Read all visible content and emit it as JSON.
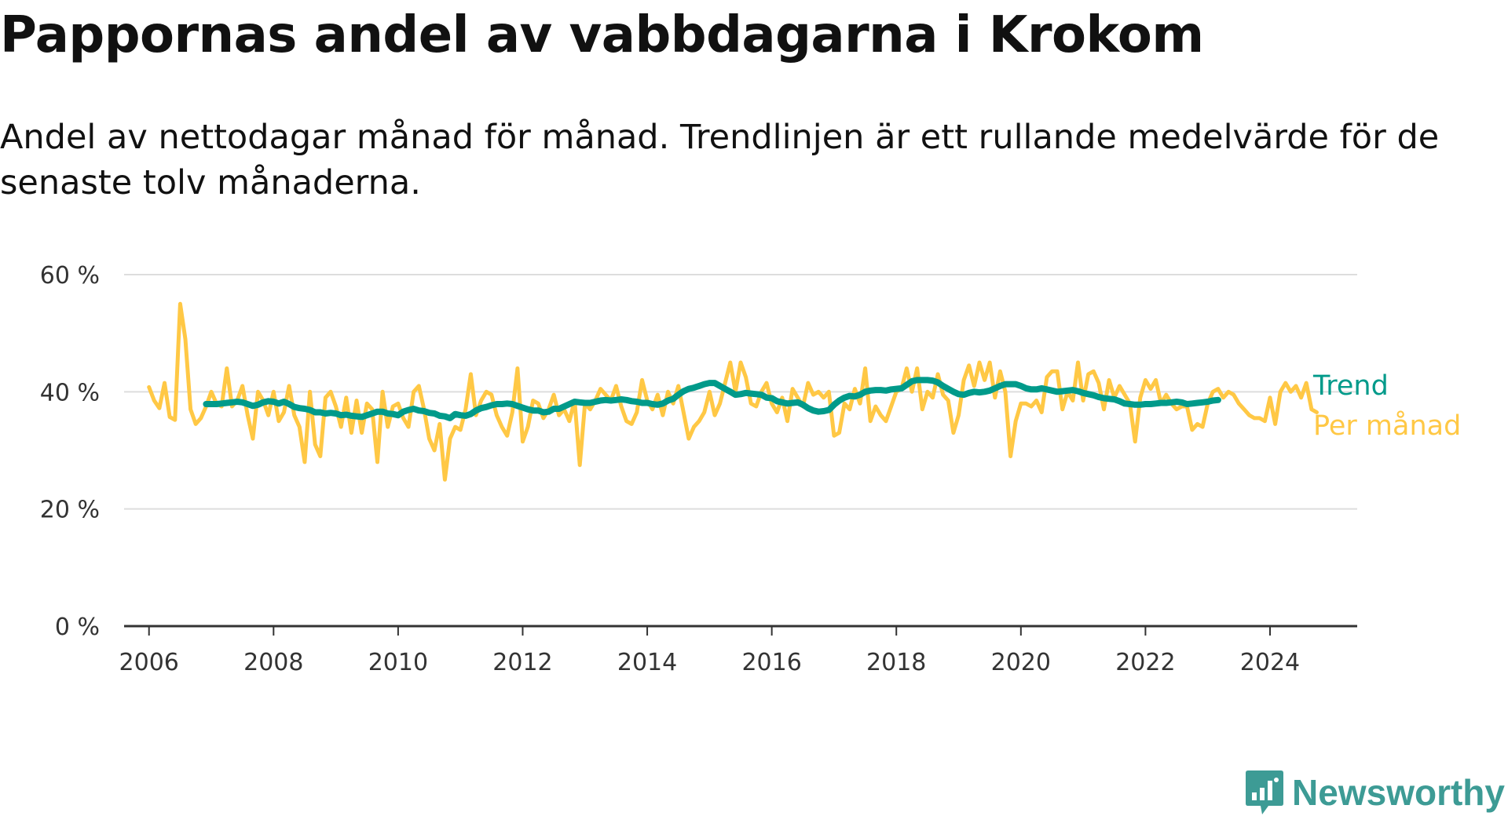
{
  "title": "Pappornas andel av vabbdagarna i Krokom",
  "subtitle": "Andel av nettodagar månad för månad. Trendlinjen är ett rullande medelvärde för de senaste tolv månaderna.",
  "brand": {
    "name": "Newsworthy",
    "color": "#3d9b95"
  },
  "chart_data": {
    "type": "line",
    "x_range": [
      2005.6,
      2025.4
    ],
    "ylim": [
      0,
      60
    ],
    "y_ticks": [
      {
        "value": 0,
        "label": "0 %"
      },
      {
        "value": 20,
        "label": "20 %"
      },
      {
        "value": 40,
        "label": "40 %"
      },
      {
        "value": 60,
        "label": "60 %"
      }
    ],
    "x_ticks": [
      {
        "value": 2006,
        "label": "2006"
      },
      {
        "value": 2008,
        "label": "2008"
      },
      {
        "value": 2010,
        "label": "2010"
      },
      {
        "value": 2012,
        "label": "2012"
      },
      {
        "value": 2014,
        "label": "2014"
      },
      {
        "value": 2016,
        "label": "2016"
      },
      {
        "value": 2018,
        "label": "2018"
      },
      {
        "value": 2020,
        "label": "2020"
      },
      {
        "value": 2022,
        "label": "2022"
      },
      {
        "value": 2024,
        "label": "2024"
      }
    ],
    "grid": true,
    "series": [
      {
        "name": "Per månad",
        "color": "#ffc845",
        "x_start": 2006.0,
        "x_step": 0.0833333,
        "values": [
          40.8,
          38.5,
          37.2,
          41.5,
          35.7,
          35.2,
          55.0,
          49.0,
          37.0,
          34.5,
          35.5,
          37.5,
          40.0,
          38.0,
          37.5,
          44.0,
          37.5,
          38.5,
          41.0,
          36.0,
          32.0,
          40.0,
          38.5,
          36.0,
          40.0,
          35.0,
          36.5,
          41.0,
          36.0,
          34.0,
          28.0,
          40.0,
          31.0,
          29.0,
          39.0,
          40.0,
          37.5,
          34.0,
          39.0,
          33.0,
          38.5,
          33.0,
          38.0,
          37.0,
          28.0,
          40.0,
          34.0,
          37.5,
          38.0,
          35.5,
          34.0,
          40.0,
          41.0,
          37.0,
          32.0,
          30.0,
          34.5,
          25.0,
          32.0,
          34.0,
          33.5,
          37.0,
          43.0,
          36.0,
          38.5,
          40.0,
          39.5,
          36.0,
          34.0,
          32.5,
          36.5,
          44.0,
          31.5,
          34.0,
          38.5,
          38.0,
          35.5,
          37.0,
          39.5,
          36.0,
          37.0,
          35.0,
          38.5,
          27.5,
          38.0,
          37.0,
          38.5,
          40.5,
          39.5,
          38.5,
          41.0,
          37.5,
          35.0,
          34.5,
          36.5,
          42.0,
          38.5,
          37.0,
          39.5,
          36.0,
          40.0,
          38.0,
          41.0,
          36.5,
          32.0,
          34.0,
          35.0,
          36.5,
          40.0,
          36.0,
          38.0,
          41.5,
          45.0,
          40.0,
          45.0,
          42.5,
          38.0,
          37.5,
          40.0,
          41.5,
          38.0,
          36.5,
          39.0,
          35.0,
          40.5,
          39.0,
          37.5,
          41.5,
          39.5,
          40.0,
          39.0,
          40.0,
          32.5,
          33.0,
          38.0,
          37.0,
          40.5,
          38.0,
          44.0,
          35.0,
          37.5,
          36.0,
          35.0,
          37.5,
          40.0,
          40.5,
          44.0,
          40.0,
          44.0,
          37.0,
          40.0,
          39.0,
          43.0,
          39.5,
          38.5,
          33.0,
          36.0,
          42.0,
          44.5,
          41.0,
          45.0,
          42.0,
          45.0,
          39.0,
          43.5,
          40.0,
          29.0,
          35.0,
          38.0,
          38.0,
          37.5,
          38.5,
          36.5,
          42.5,
          43.5,
          43.5,
          37.0,
          40.0,
          38.5,
          45.0,
          38.5,
          43.0,
          43.5,
          41.5,
          37.0,
          42.0,
          39.0,
          41.0,
          39.5,
          38.0,
          31.5,
          39.0,
          42.0,
          40.5,
          42.0,
          38.0,
          39.5,
          38.0,
          37.0,
          37.5,
          37.5,
          33.5,
          34.5,
          34.0,
          38.0,
          40.0,
          40.5,
          39.0,
          40.0,
          39.5,
          38.0,
          37.0,
          36.0,
          35.5,
          35.5,
          35.0,
          39.0,
          34.5,
          40.0,
          41.5,
          40.0,
          41.0,
          39.0,
          41.5,
          37.0,
          36.5
        ]
      },
      {
        "name": "Trend",
        "color": "#009a8a",
        "x_start": 2006.917,
        "x_step": 0.0833333,
        "values": [
          37.9,
          37.9,
          37.9,
          38.0,
          38.1,
          38.2,
          38.3,
          38.2,
          37.9,
          37.6,
          37.8,
          38.2,
          38.4,
          38.3,
          38.0,
          38.3,
          37.9,
          37.4,
          37.2,
          37.1,
          36.9,
          36.5,
          36.5,
          36.3,
          36.4,
          36.3,
          36.0,
          36.1,
          35.9,
          35.8,
          35.7,
          36.0,
          36.3,
          36.6,
          36.6,
          36.3,
          36.2,
          36.0,
          36.6,
          36.9,
          37.1,
          36.8,
          36.7,
          36.4,
          36.3,
          35.9,
          35.8,
          35.5,
          36.2,
          36.0,
          35.9,
          36.2,
          36.8,
          37.2,
          37.4,
          37.7,
          37.9,
          37.9,
          38.0,
          37.9,
          37.6,
          37.3,
          37.0,
          36.8,
          36.8,
          36.5,
          36.6,
          37.1,
          37.1,
          37.5,
          37.9,
          38.3,
          38.2,
          38.1,
          38.1,
          38.3,
          38.5,
          38.6,
          38.5,
          38.6,
          38.7,
          38.6,
          38.4,
          38.3,
          38.1,
          38.1,
          37.9,
          37.8,
          38.0,
          38.5,
          38.8,
          39.5,
          40.1,
          40.5,
          40.7,
          41.0,
          41.3,
          41.5,
          41.5,
          41.0,
          40.5,
          40.0,
          39.5,
          39.6,
          39.8,
          39.7,
          39.6,
          39.5,
          39.0,
          38.9,
          38.4,
          38.2,
          38.0,
          38.1,
          38.2,
          37.8,
          37.2,
          36.8,
          36.6,
          36.7,
          36.9,
          37.8,
          38.5,
          39.0,
          39.3,
          39.2,
          39.5,
          40.0,
          40.2,
          40.3,
          40.3,
          40.2,
          40.4,
          40.5,
          40.6,
          41.2,
          41.8,
          42.0,
          42.0,
          42.0,
          41.9,
          41.6,
          41.0,
          40.5,
          40.0,
          39.6,
          39.5,
          39.8,
          40.0,
          39.9,
          40.0,
          40.2,
          40.6,
          41.0,
          41.3,
          41.3,
          41.3,
          41.0,
          40.6,
          40.4,
          40.4,
          40.6,
          40.4,
          40.2,
          40.0,
          40.1,
          40.2,
          40.3,
          40.1,
          39.8,
          39.6,
          39.4,
          39.1,
          38.9,
          38.8,
          38.7,
          38.4,
          38.0,
          37.9,
          37.8,
          37.8,
          37.9,
          37.9,
          38.0,
          38.1,
          38.1,
          38.2,
          38.3,
          38.2,
          37.9,
          38.0,
          38.1,
          38.2,
          38.3,
          38.5,
          38.6
        ]
      }
    ]
  }
}
